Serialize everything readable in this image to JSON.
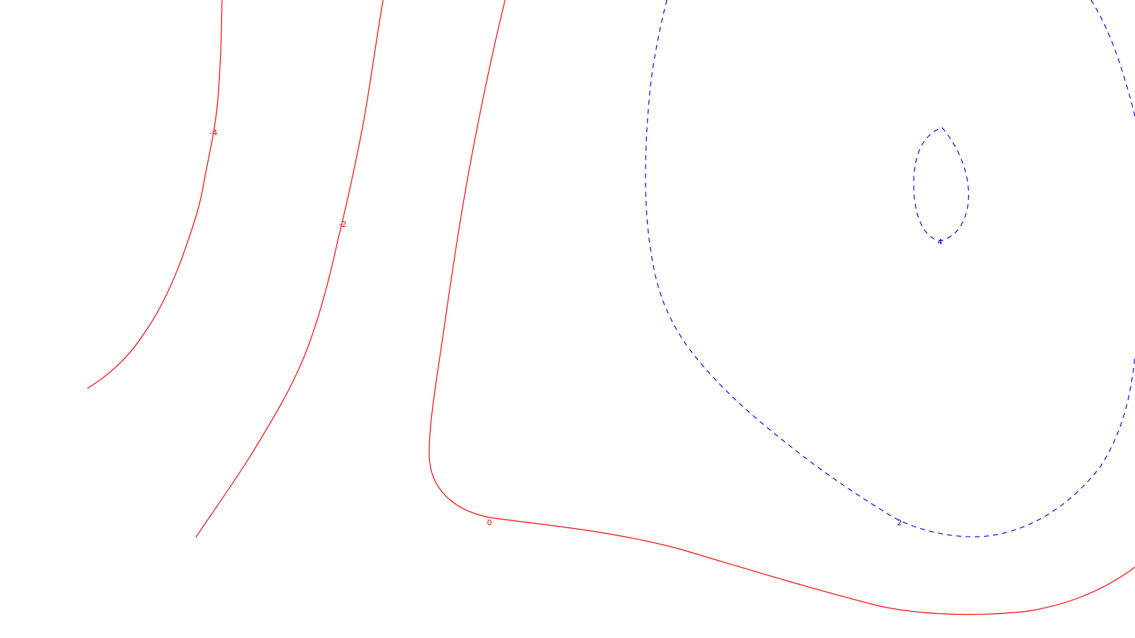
{
  "chart_data": {
    "type": "contour",
    "title": "",
    "xlabel": "",
    "ylabel": "",
    "grid": false,
    "axes_visible": false,
    "colors": {
      "negative_and_zero": "#ff0000",
      "positive": "#0000ff",
      "background": "#ffffff"
    },
    "levels": [
      {
        "level": "-4",
        "value": -4,
        "line_style": "solid",
        "color": "#ff0000",
        "label": "-4"
      },
      {
        "level": "-2",
        "value": -2,
        "line_style": "solid",
        "color": "#ff0000",
        "label": "-2"
      },
      {
        "level": "0",
        "value": 0,
        "line_style": "solid",
        "color": "#ff0000",
        "label": "0"
      },
      {
        "level": "2",
        "value": 2,
        "line_style": "dashed",
        "color": "#0000ff",
        "label": "2"
      },
      {
        "level": "4",
        "value": 4,
        "line_style": "dashed",
        "color": "#0000ff",
        "label": "4"
      }
    ]
  }
}
